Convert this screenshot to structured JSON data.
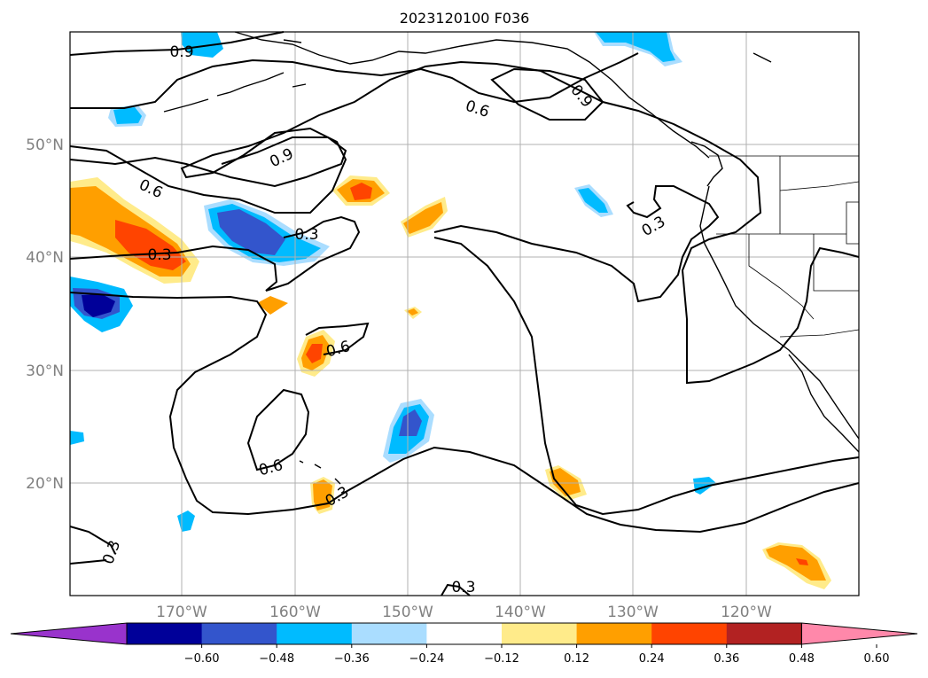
{
  "title": "2023120100 F036",
  "lat_labels": [
    "50°N",
    "40°N",
    "30°N",
    "20°N"
  ],
  "lon_labels": [
    "170°W",
    "160°W",
    "150°W",
    "140°W",
    "130°W",
    "120°W"
  ],
  "colorbar": {
    "ticks": [
      "−0.60",
      "−0.48",
      "−0.36",
      "−0.24",
      "−0.12",
      "0.12",
      "0.24",
      "0.36",
      "0.48",
      "0.60"
    ],
    "colors": [
      "#9933cc",
      "#000099",
      "#3355cc",
      "#00bbff",
      "#aaddff",
      "#ffffff",
      "#ffeb8a",
      "#ff9f00",
      "#ff4400",
      "#b22222",
      "#ff88aa"
    ]
  },
  "contour_labels": [
    "0.9",
    "0.6",
    "0.9",
    "0.6",
    "0.9",
    "0.3",
    "0.3",
    "0.3",
    "0.6",
    "0.6",
    "0.3",
    "0.3",
    "0.3"
  ]
}
